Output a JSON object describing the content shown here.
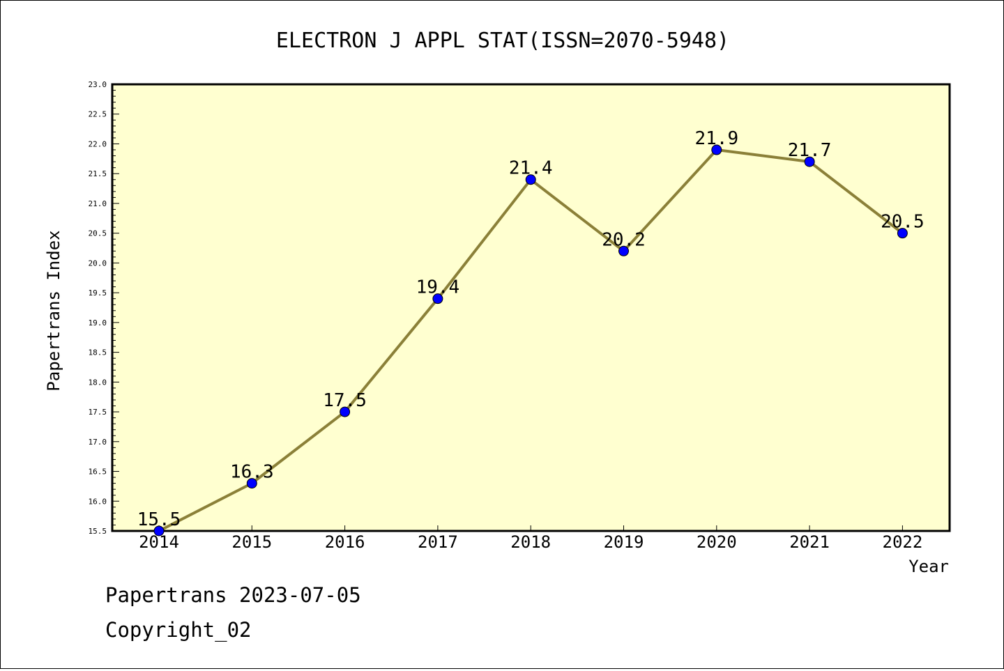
{
  "chart_data": {
    "type": "line",
    "title": "ELECTRON J APPL STAT(ISSN=2070-5948)",
    "xlabel": "Year",
    "ylabel": "Papertrans Index",
    "x": [
      "2014",
      "2015",
      "2016",
      "2017",
      "2018",
      "2019",
      "2020",
      "2021",
      "2022"
    ],
    "series": [
      {
        "values": [
          15.5,
          16.3,
          17.5,
          19.4,
          21.4,
          20.2,
          21.9,
          21.7,
          20.5
        ],
        "labels": [
          "15.5",
          "16.3",
          "17.5",
          "19.4",
          "21.4",
          "20.2",
          "21.9",
          "21.7",
          "20.5"
        ]
      }
    ],
    "ylim": [
      15.5,
      23.0
    ],
    "yticks": [
      "15.5",
      "16.0",
      "16.5",
      "17.0",
      "17.5",
      "18.0",
      "18.5",
      "19.0",
      "19.5",
      "20.0",
      "20.5",
      "21.0",
      "21.5",
      "22.0",
      "22.5",
      "23.0"
    ],
    "grid": false,
    "colors": {
      "plot_background": "#ffffd0",
      "line": "#8b8038",
      "marker": "#0000ff"
    }
  },
  "footer": {
    "source": "Papertrans 2023-07-05",
    "copyright": "Copyright_02"
  }
}
